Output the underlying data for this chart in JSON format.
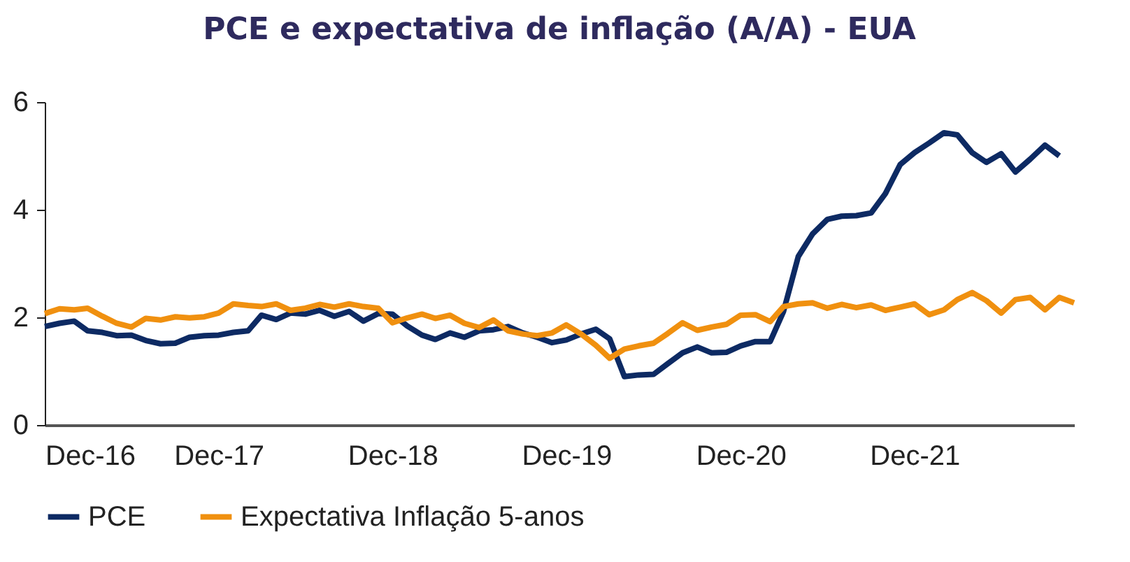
{
  "chart_data": {
    "type": "line",
    "title": "PCE e expectativa de inflação (A/A) - EUA",
    "x": [
      "2016-12",
      "2017-01",
      "2017-02",
      "2017-03",
      "2017-04",
      "2017-05",
      "2017-06",
      "2017-07",
      "2017-08",
      "2017-09",
      "2017-10",
      "2017-11",
      "2017-12",
      "2018-01",
      "2018-02",
      "2018-03",
      "2018-04",
      "2018-05",
      "2018-06",
      "2018-07",
      "2018-08",
      "2018-09",
      "2018-10",
      "2018-11",
      "2018-12",
      "2019-01",
      "2019-02",
      "2019-03",
      "2019-04",
      "2019-05",
      "2019-06",
      "2019-07",
      "2019-08",
      "2019-09",
      "2019-10",
      "2019-11",
      "2019-12",
      "2020-01",
      "2020-02",
      "2020-03",
      "2020-04",
      "2020-05",
      "2020-06",
      "2020-07",
      "2020-08",
      "2020-09",
      "2020-10",
      "2020-11",
      "2020-12",
      "2021-01",
      "2021-02",
      "2021-03",
      "2021-04",
      "2021-05",
      "2021-06",
      "2021-07",
      "2021-08",
      "2021-09",
      "2021-10",
      "2021-11",
      "2021-12",
      "2022-01",
      "2022-02",
      "2022-03",
      "2022-04",
      "2022-05",
      "2022-06",
      "2022-07",
      "2022-08",
      "2022-09",
      "2022-10",
      "2022-11"
    ],
    "series": [
      {
        "name": "PCE",
        "color": "#0d2a63",
        "values": [
          1.83,
          1.89,
          1.93,
          1.75,
          1.72,
          1.66,
          1.67,
          1.57,
          1.51,
          1.52,
          1.63,
          1.66,
          1.67,
          1.72,
          1.75,
          2.04,
          1.96,
          2.08,
          2.06,
          2.13,
          2.02,
          2.11,
          1.93,
          2.07,
          2.06,
          1.84,
          1.67,
          1.59,
          1.71,
          1.63,
          1.75,
          1.77,
          1.83,
          1.71,
          1.63,
          1.53,
          1.58,
          1.69,
          1.78,
          1.6,
          0.9,
          0.93,
          0.94,
          1.14,
          1.34,
          1.45,
          1.34,
          1.35,
          1.47,
          1.55,
          1.55,
          2.11,
          3.13,
          3.55,
          3.82,
          3.88,
          3.89,
          3.94,
          4.3,
          4.84,
          5.06,
          5.24,
          5.43,
          5.39,
          5.06,
          4.88,
          5.04,
          4.7,
          4.94,
          5.2,
          5.0,
          null
        ]
      },
      {
        "name": "Expectativa Inflação 5-anos",
        "color": "#f0900f",
        "values": [
          2.07,
          2.16,
          2.14,
          2.17,
          2.02,
          1.89,
          1.82,
          1.98,
          1.95,
          2.01,
          1.99,
          2.01,
          2.08,
          2.25,
          2.22,
          2.2,
          2.25,
          2.13,
          2.17,
          2.24,
          2.19,
          2.25,
          2.2,
          2.17,
          1.9,
          1.99,
          2.06,
          1.98,
          2.04,
          1.89,
          1.81,
          1.95,
          1.75,
          1.69,
          1.66,
          1.71,
          1.86,
          1.69,
          1.48,
          1.24,
          1.41,
          1.47,
          1.52,
          1.7,
          1.9,
          1.76,
          1.82,
          1.87,
          2.04,
          2.05,
          1.92,
          2.2,
          2.25,
          2.27,
          2.17,
          2.24,
          2.18,
          2.23,
          2.13,
          2.19,
          2.25,
          2.05,
          2.14,
          2.33,
          2.46,
          2.31,
          2.08,
          2.33,
          2.37,
          2.14,
          2.37,
          2.27
        ]
      }
    ],
    "xlim": [
      "2016-12",
      "2022-11"
    ],
    "xticks": [
      {
        "value": "2016-12",
        "label": "Dec-16"
      },
      {
        "value": "2017-12",
        "label": "Dec-17"
      },
      {
        "value": "2018-12",
        "label": "Dec-18"
      },
      {
        "value": "2019-12",
        "label": "Dec-19"
      },
      {
        "value": "2020-12",
        "label": "Dec-20"
      },
      {
        "value": "2021-12",
        "label": "Dec-21"
      }
    ],
    "ylim": [
      0,
      6
    ],
    "yticks": [
      0,
      2,
      4,
      6
    ],
    "grid": false,
    "legend": "bottom",
    "marker": "none",
    "line_style": "solid"
  }
}
